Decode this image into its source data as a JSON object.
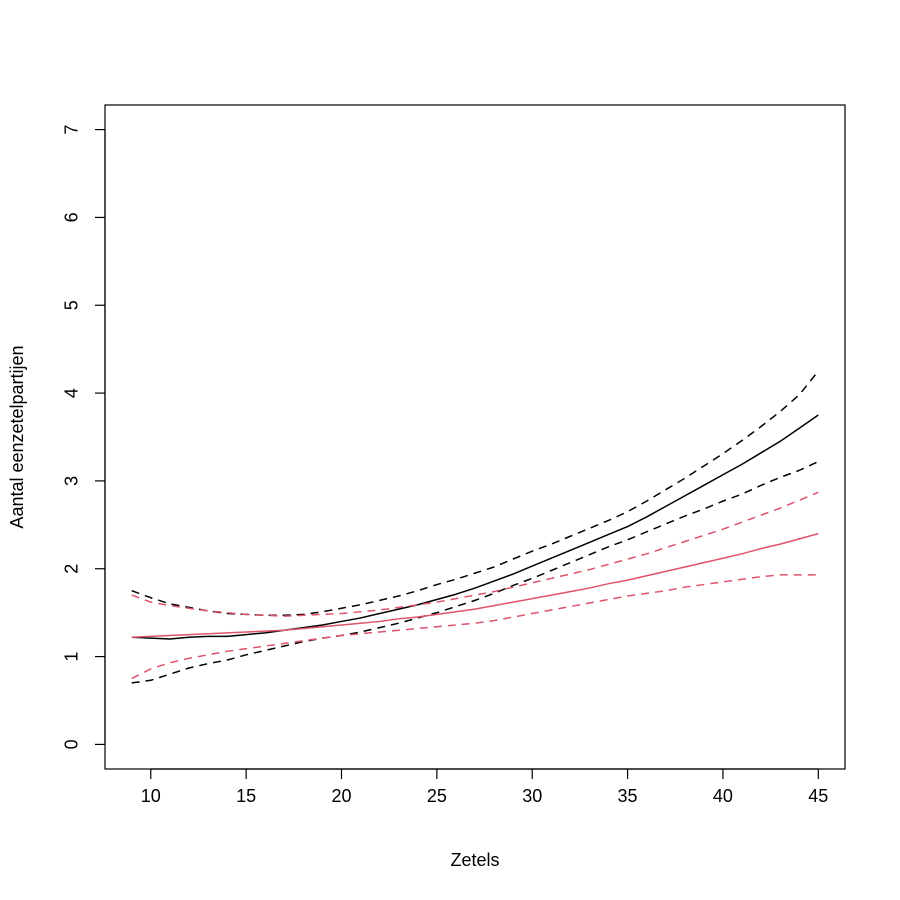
{
  "chart_data": {
    "type": "line",
    "title": "",
    "xlabel": "Zetels",
    "ylabel": "Aantal eenzetelpartijen",
    "xlim": [
      7.6,
      46.4
    ],
    "ylim": [
      -0.28,
      7.28
    ],
    "x_ticks": [
      10,
      15,
      20,
      25,
      30,
      35,
      40,
      45
    ],
    "y_ticks": [
      0,
      1,
      2,
      3,
      4,
      5,
      6,
      7
    ],
    "grid": false,
    "legend": "none",
    "x": [
      9,
      10,
      11,
      12,
      13,
      14,
      15,
      16,
      17,
      18,
      19,
      20,
      21,
      22,
      23,
      24,
      25,
      26,
      27,
      28,
      29,
      30,
      31,
      32,
      33,
      34,
      35,
      36,
      37,
      38,
      39,
      40,
      41,
      42,
      43,
      44,
      45
    ],
    "series": [
      {
        "name": "black-mean",
        "color": "#000000",
        "dash": "solid",
        "values": [
          1.22,
          1.21,
          1.2,
          1.22,
          1.23,
          1.23,
          1.25,
          1.27,
          1.3,
          1.33,
          1.36,
          1.4,
          1.44,
          1.49,
          1.54,
          1.59,
          1.65,
          1.71,
          1.78,
          1.86,
          1.94,
          2.03,
          2.12,
          2.21,
          2.3,
          2.39,
          2.48,
          2.59,
          2.71,
          2.83,
          2.95,
          3.07,
          3.19,
          3.32,
          3.45,
          3.6,
          3.75
        ]
      },
      {
        "name": "black-upper",
        "color": "#000000",
        "dash": "dashed",
        "values": [
          1.75,
          1.67,
          1.6,
          1.56,
          1.52,
          1.49,
          1.48,
          1.47,
          1.47,
          1.48,
          1.51,
          1.55,
          1.59,
          1.64,
          1.69,
          1.75,
          1.82,
          1.88,
          1.95,
          2.02,
          2.11,
          2.2,
          2.28,
          2.37,
          2.46,
          2.55,
          2.65,
          2.77,
          2.9,
          3.03,
          3.17,
          3.31,
          3.46,
          3.62,
          3.79,
          3.98,
          4.25
        ]
      },
      {
        "name": "black-lower",
        "color": "#000000",
        "dash": "dashed",
        "values": [
          0.7,
          0.73,
          0.8,
          0.87,
          0.92,
          0.96,
          1.02,
          1.07,
          1.12,
          1.17,
          1.21,
          1.24,
          1.28,
          1.33,
          1.38,
          1.44,
          1.5,
          1.57,
          1.64,
          1.72,
          1.81,
          1.89,
          1.98,
          2.07,
          2.16,
          2.25,
          2.33,
          2.42,
          2.51,
          2.6,
          2.68,
          2.77,
          2.85,
          2.95,
          3.04,
          3.12,
          3.22
        ]
      },
      {
        "name": "red-mean",
        "color": "#DF536B",
        "dash": "solid",
        "values": [
          1.22,
          1.23,
          1.24,
          1.25,
          1.26,
          1.27,
          1.28,
          1.29,
          1.3,
          1.32,
          1.34,
          1.36,
          1.38,
          1.4,
          1.43,
          1.45,
          1.48,
          1.51,
          1.54,
          1.58,
          1.62,
          1.66,
          1.7,
          1.74,
          1.78,
          1.83,
          1.87,
          1.92,
          1.97,
          2.02,
          2.07,
          2.12,
          2.17,
          2.23,
          2.28,
          2.34,
          2.4
        ]
      },
      {
        "name": "red-upper",
        "color": "#DF536B",
        "dash": "dashed",
        "values": [
          1.7,
          1.62,
          1.58,
          1.55,
          1.52,
          1.5,
          1.48,
          1.47,
          1.46,
          1.47,
          1.48,
          1.49,
          1.51,
          1.53,
          1.56,
          1.59,
          1.62,
          1.66,
          1.7,
          1.74,
          1.79,
          1.84,
          1.89,
          1.94,
          1.99,
          2.05,
          2.11,
          2.17,
          2.24,
          2.31,
          2.38,
          2.45,
          2.53,
          2.61,
          2.69,
          2.78,
          2.87
        ]
      },
      {
        "name": "red-lower",
        "color": "#DF536B",
        "dash": "dashed",
        "values": [
          0.75,
          0.86,
          0.93,
          0.98,
          1.02,
          1.06,
          1.09,
          1.12,
          1.15,
          1.18,
          1.21,
          1.24,
          1.26,
          1.28,
          1.3,
          1.32,
          1.34,
          1.36,
          1.38,
          1.41,
          1.45,
          1.49,
          1.53,
          1.57,
          1.61,
          1.65,
          1.69,
          1.72,
          1.75,
          1.79,
          1.82,
          1.85,
          1.88,
          1.91,
          1.93,
          1.93,
          1.93
        ]
      }
    ]
  }
}
